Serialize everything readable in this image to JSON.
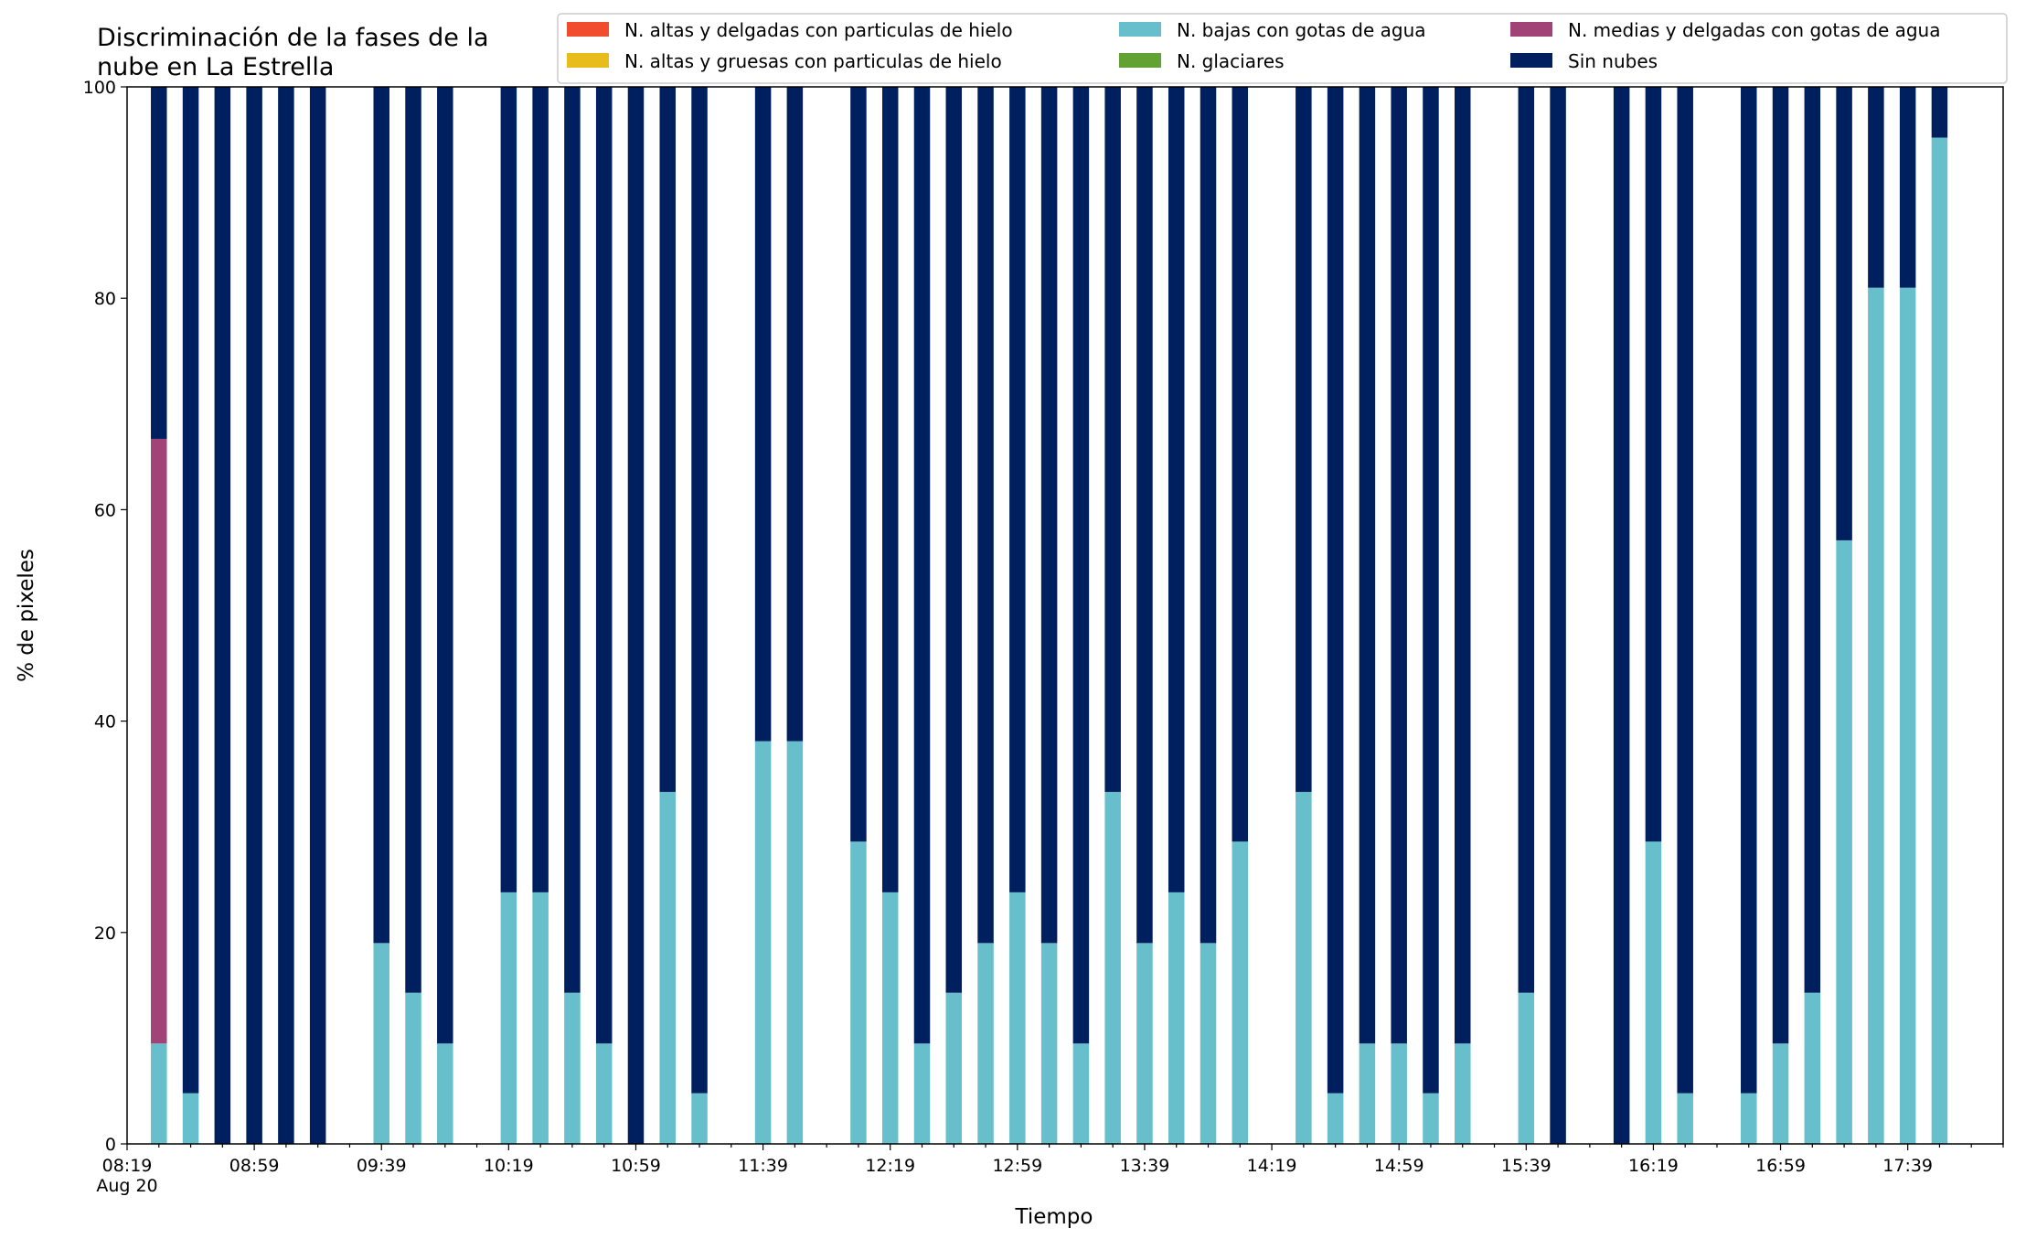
{
  "chart_data": {
    "type": "bar",
    "stacked": true,
    "title": "Discriminación de la fases de la\nnube en La Estrella",
    "xlabel": "Tiempo",
    "ylabel": "% de pixeles",
    "ylim": [
      0,
      100
    ],
    "yticks": [
      0,
      20,
      40,
      60,
      80,
      100
    ],
    "xlim": [
      "08:19",
      "18:09"
    ],
    "interval_minutes": 10,
    "xtick_labels": [
      "08:19",
      "08:59",
      "09:39",
      "10:19",
      "10:59",
      "11:39",
      "12:19",
      "12:59",
      "13:39",
      "14:19",
      "14:59",
      "15:39",
      "16:19",
      "16:59",
      "17:39"
    ],
    "xtick_sublabel": "Aug 20",
    "legend_position": "top-right",
    "grid": false,
    "series": [
      {
        "name": "N. altas y delgadas con particulas de hielo",
        "color": "#f14c2d",
        "values": []
      },
      {
        "name": "N. altas y gruesas con particulas de hielo",
        "color": "#e8bc1b",
        "values": []
      },
      {
        "name": "N. bajas con gotas de agua",
        "color": "#66bfcb",
        "values": []
      },
      {
        "name": "N. glaciares",
        "color": "#62a232",
        "values": []
      },
      {
        "name": "N. medias y delgadas con gotas de agua",
        "color": "#a24377",
        "values": []
      },
      {
        "name": "Sin nubes",
        "color": "#001f5f",
        "values": []
      }
    ],
    "bars": [
      {
        "time": "08:29",
        "bajas": 9.5,
        "medias": 57.2
      },
      {
        "time": "08:39",
        "bajas": 4.8
      },
      {
        "time": "08:49",
        "bajas": 0
      },
      {
        "time": "08:59",
        "bajas": 0
      },
      {
        "time": "09:09",
        "bajas": 0
      },
      {
        "time": "09:19",
        "bajas": 0
      },
      {
        "time": "09:39",
        "bajas": 19.0
      },
      {
        "time": "09:49",
        "bajas": 14.3
      },
      {
        "time": "09:59",
        "bajas": 9.5
      },
      {
        "time": "10:19",
        "bajas": 23.8
      },
      {
        "time": "10:29",
        "bajas": 23.8
      },
      {
        "time": "10:39",
        "bajas": 14.3
      },
      {
        "time": "10:49",
        "bajas": 9.5
      },
      {
        "time": "10:59",
        "bajas": 0
      },
      {
        "time": "11:09",
        "bajas": 33.3
      },
      {
        "time": "11:19",
        "bajas": 4.8
      },
      {
        "time": "11:39",
        "bajas": 38.1
      },
      {
        "time": "11:49",
        "bajas": 38.1
      },
      {
        "time": "12:09",
        "bajas": 28.6
      },
      {
        "time": "12:19",
        "bajas": 23.8
      },
      {
        "time": "12:29",
        "bajas": 9.5
      },
      {
        "time": "12:39",
        "bajas": 14.3
      },
      {
        "time": "12:49",
        "bajas": 19.0
      },
      {
        "time": "12:59",
        "bajas": 23.8
      },
      {
        "time": "13:09",
        "bajas": 19.0
      },
      {
        "time": "13:19",
        "bajas": 9.5
      },
      {
        "time": "13:29",
        "bajas": 33.3
      },
      {
        "time": "13:39",
        "bajas": 19.0
      },
      {
        "time": "13:49",
        "bajas": 23.8
      },
      {
        "time": "13:59",
        "bajas": 19.0
      },
      {
        "time": "14:09",
        "bajas": 28.6
      },
      {
        "time": "14:29",
        "bajas": 33.3
      },
      {
        "time": "14:39",
        "bajas": 4.8
      },
      {
        "time": "14:49",
        "bajas": 9.5
      },
      {
        "time": "14:59",
        "bajas": 9.5
      },
      {
        "time": "15:09",
        "bajas": 4.8
      },
      {
        "time": "15:19",
        "bajas": 9.5
      },
      {
        "time": "15:39",
        "bajas": 14.3
      },
      {
        "time": "15:49",
        "bajas": 0
      },
      {
        "time": "16:09",
        "bajas": 0
      },
      {
        "time": "16:19",
        "bajas": 28.6
      },
      {
        "time": "16:29",
        "bajas": 4.8
      },
      {
        "time": "16:49",
        "bajas": 4.8
      },
      {
        "time": "16:59",
        "bajas": 9.5
      },
      {
        "time": "17:09",
        "bajas": 14.3
      },
      {
        "time": "17:19",
        "bajas": 57.1
      },
      {
        "time": "17:29",
        "bajas": 81.0
      },
      {
        "time": "17:39",
        "bajas": 81.0
      },
      {
        "time": "17:49",
        "bajas": 95.2
      }
    ]
  }
}
